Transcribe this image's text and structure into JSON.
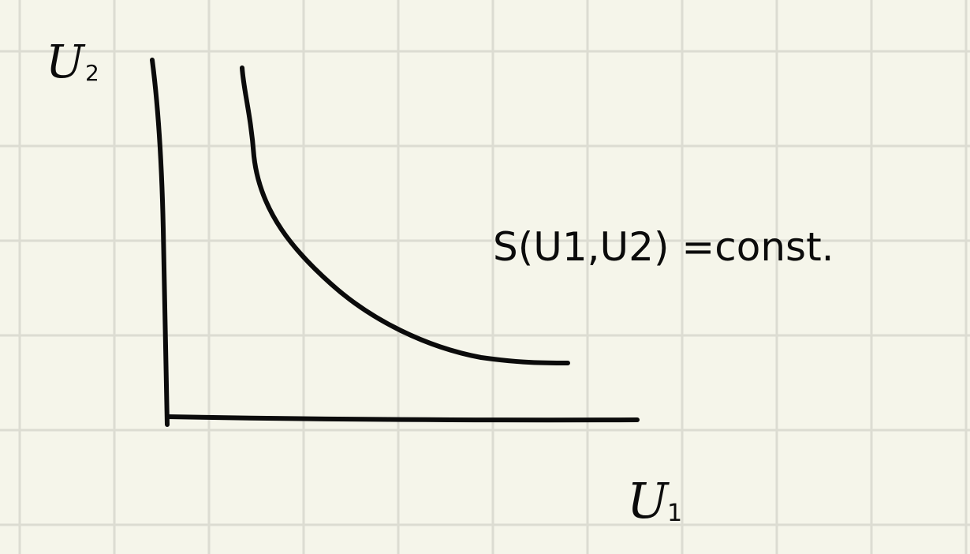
{
  "labels": {
    "y_axis": "U",
    "y_axis_sub": "2",
    "x_axis": "U",
    "x_axis_sub": "1",
    "curve_label": "S(U1,U2) =const."
  },
  "colors": {
    "paper": "#f5f5ea",
    "grid": "#dcdcd2",
    "ink": "#0b0b0b"
  }
}
